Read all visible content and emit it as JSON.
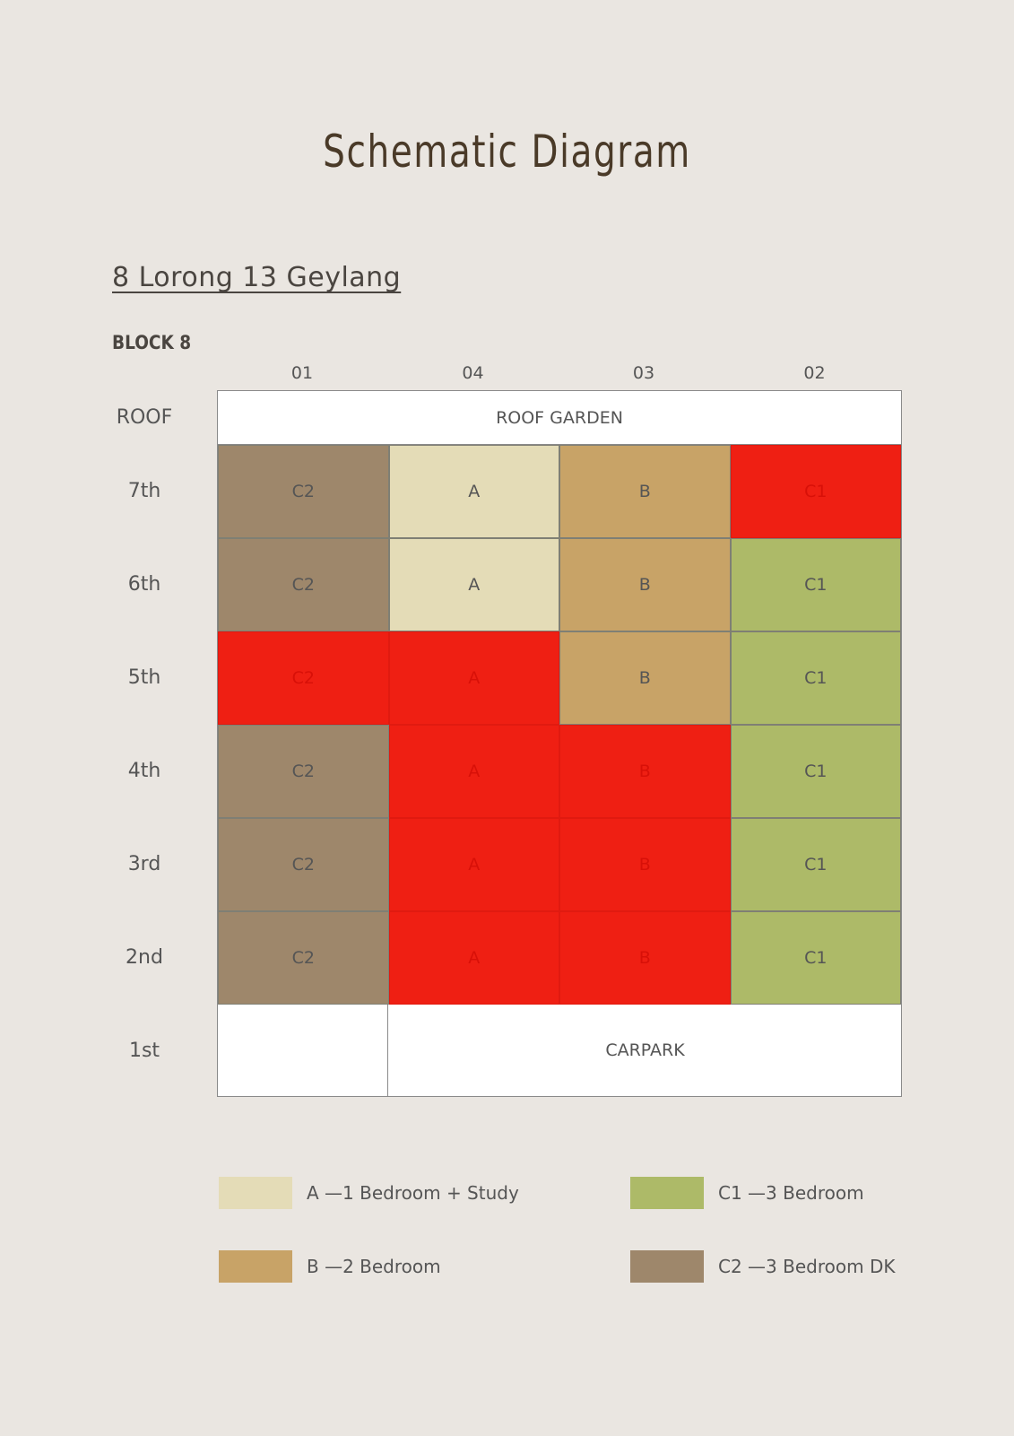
{
  "title": "Schematic Diagram",
  "address": "8 Lorong 13 Geylang",
  "block": "BLOCK 8",
  "units": [
    "01",
    "04",
    "03",
    "02"
  ],
  "floors": [
    "ROOF",
    "7th",
    "6th",
    "5th",
    "4th",
    "3rd",
    "2nd",
    "1st"
  ],
  "roof_band": "ROOF GARDEN",
  "carpark_band": "CARPARK",
  "colors": {
    "A": "#e4dcb7",
    "B": "#c8a367",
    "C1": "#adba68",
    "C2": "#9e876b",
    "sold": "#ef1f13"
  },
  "rows": [
    {
      "floor": "7th",
      "cells": [
        {
          "type": "C2",
          "sold": false
        },
        {
          "type": "A",
          "sold": false
        },
        {
          "type": "B",
          "sold": false
        },
        {
          "type": "C1",
          "sold": true
        }
      ]
    },
    {
      "floor": "6th",
      "cells": [
        {
          "type": "C2",
          "sold": false
        },
        {
          "type": "A",
          "sold": false
        },
        {
          "type": "B",
          "sold": false
        },
        {
          "type": "C1",
          "sold": false
        }
      ]
    },
    {
      "floor": "5th",
      "cells": [
        {
          "type": "C2",
          "sold": true
        },
        {
          "type": "A",
          "sold": true
        },
        {
          "type": "B",
          "sold": false
        },
        {
          "type": "C1",
          "sold": false
        }
      ]
    },
    {
      "floor": "4th",
      "cells": [
        {
          "type": "C2",
          "sold": false
        },
        {
          "type": "A",
          "sold": true
        },
        {
          "type": "B",
          "sold": true
        },
        {
          "type": "C1",
          "sold": false
        }
      ]
    },
    {
      "floor": "3rd",
      "cells": [
        {
          "type": "C2",
          "sold": false
        },
        {
          "type": "A",
          "sold": true
        },
        {
          "type": "B",
          "sold": true
        },
        {
          "type": "C1",
          "sold": false
        }
      ]
    },
    {
      "floor": "2nd",
      "cells": [
        {
          "type": "C2",
          "sold": false
        },
        {
          "type": "A",
          "sold": true
        },
        {
          "type": "B",
          "sold": true
        },
        {
          "type": "C1",
          "sold": false
        }
      ]
    }
  ],
  "legend": [
    {
      "type": "A",
      "label": "A —1 Bedroom + Study"
    },
    {
      "type": "C1",
      "label": "C1 —3 Bedroom"
    },
    {
      "type": "B",
      "label": "B —2 Bedroom"
    },
    {
      "type": "C2",
      "label": "C2 —3 Bedroom DK"
    }
  ]
}
